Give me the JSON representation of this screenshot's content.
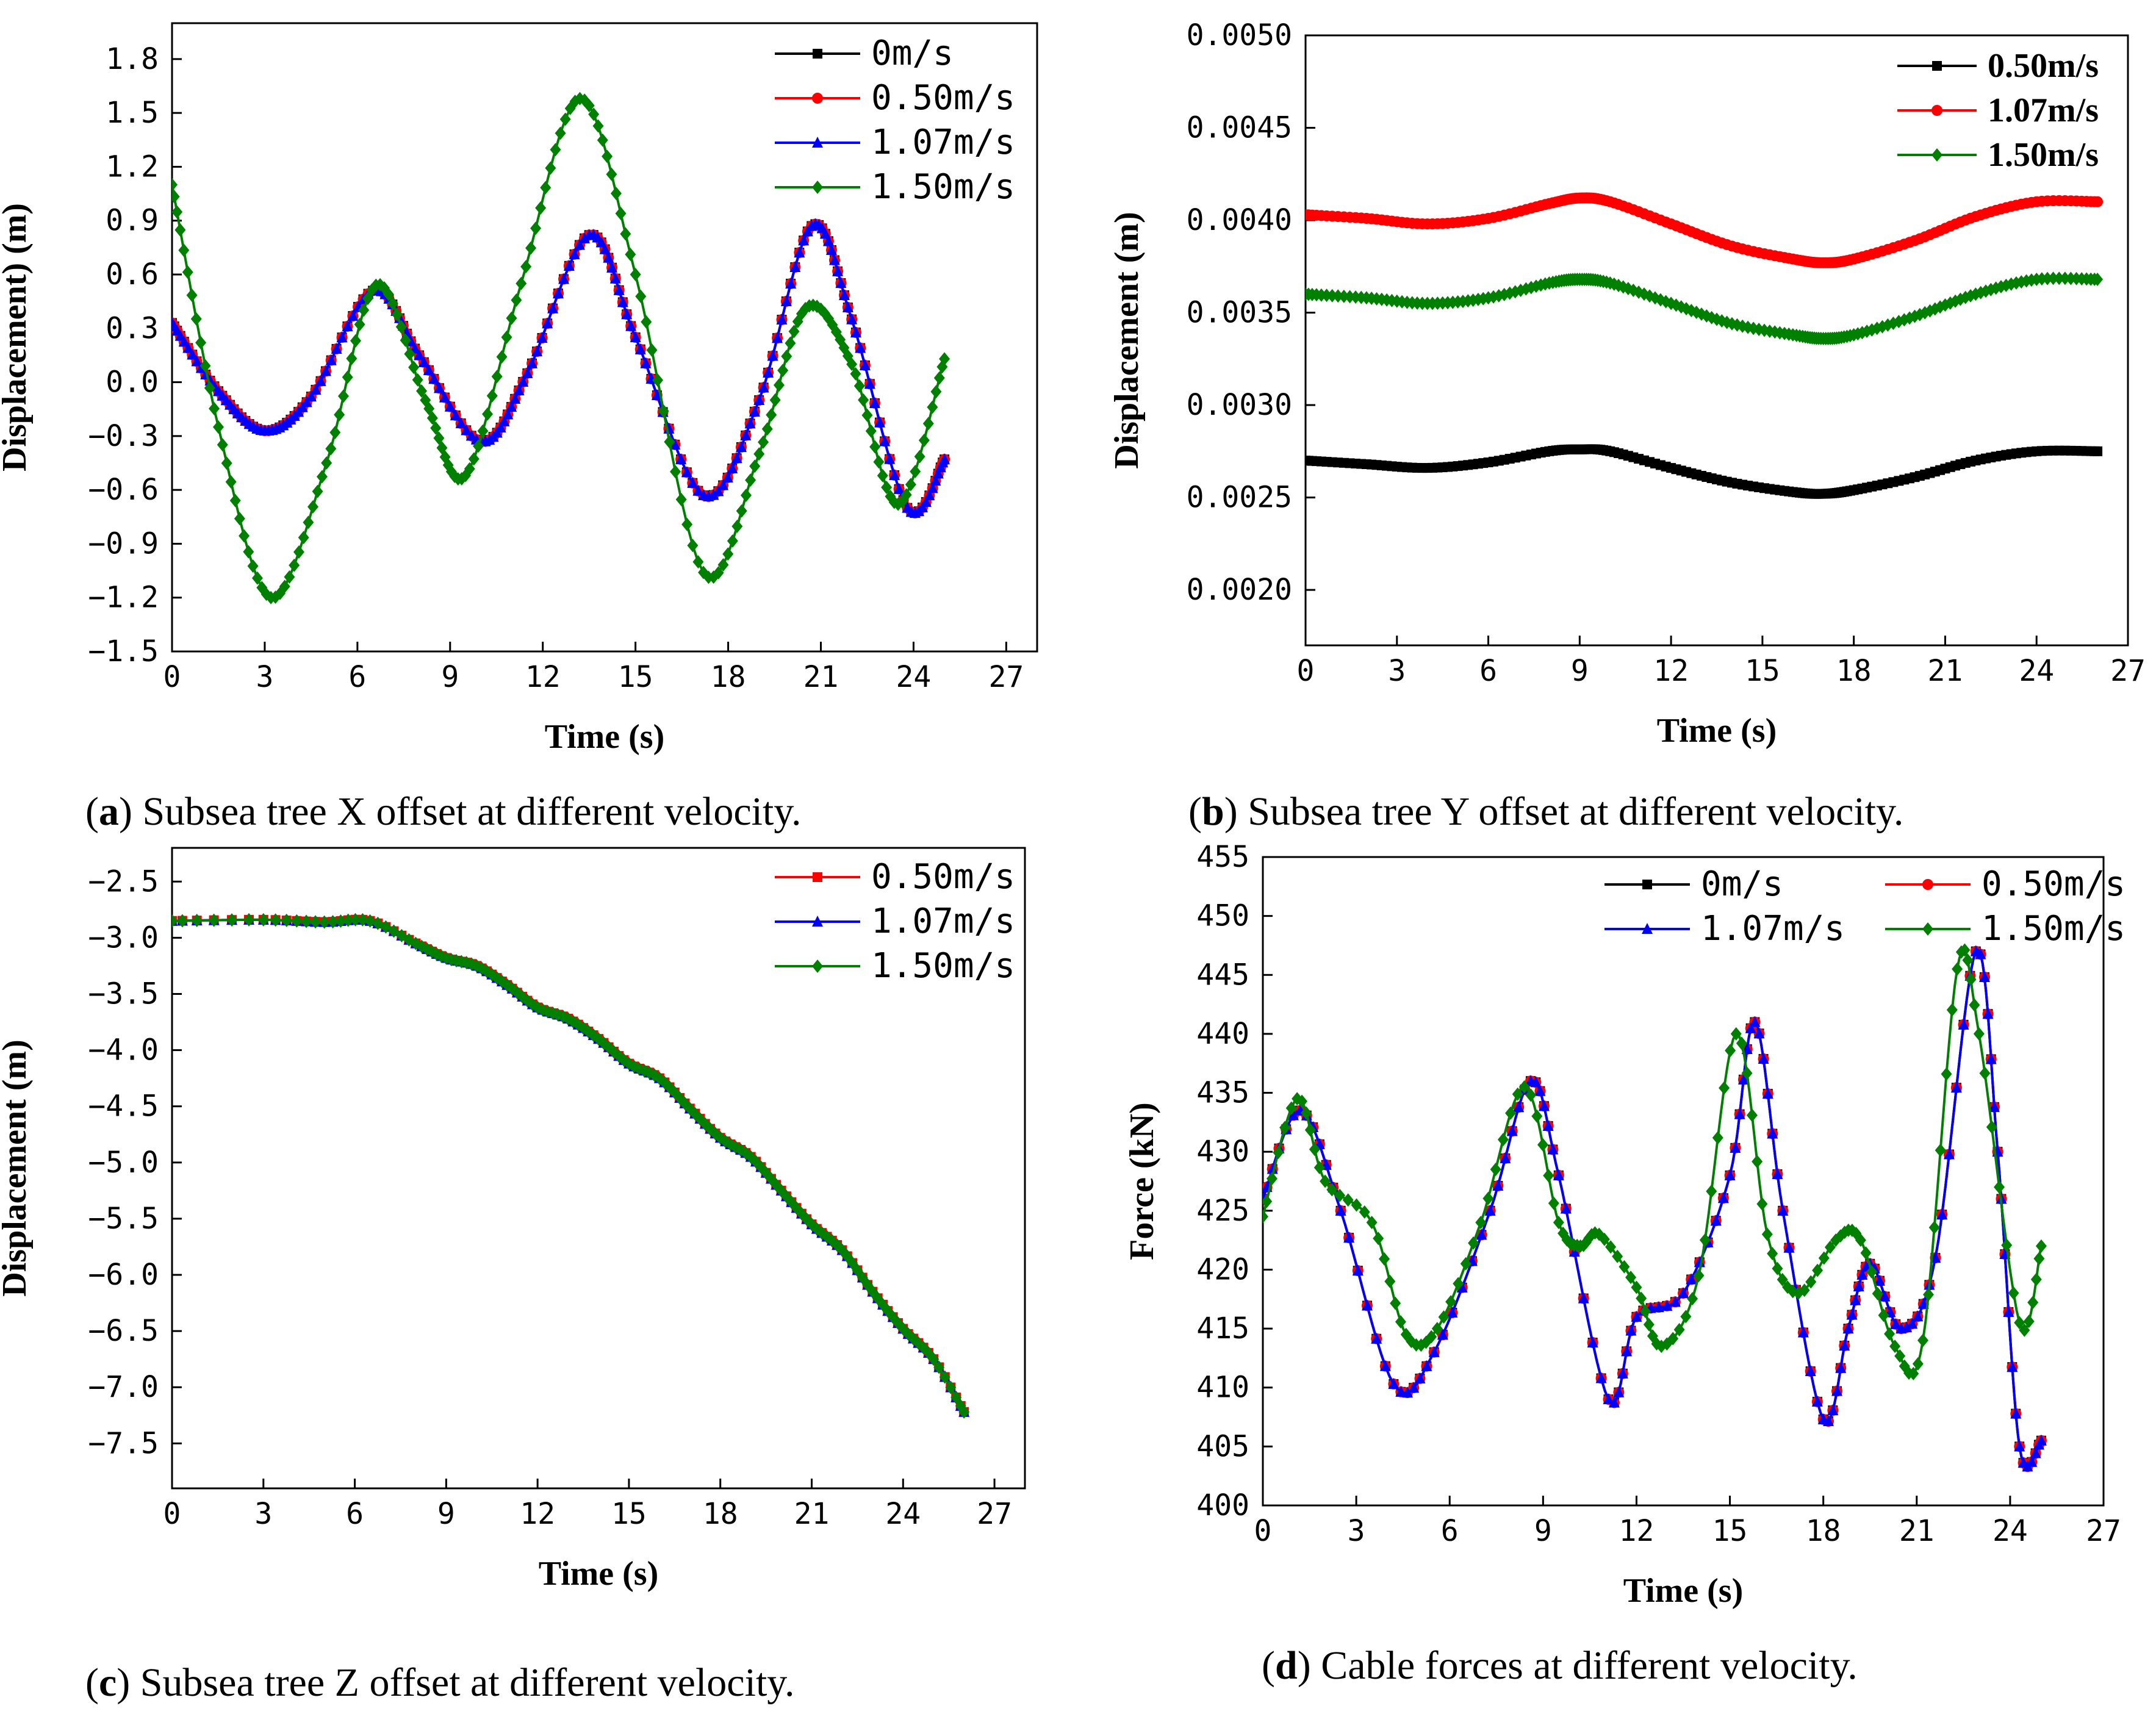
{
  "colors": {
    "s0": "#000000",
    "s050": "#ff0000",
    "s107": "#0000ff",
    "s150": "#008000"
  },
  "captions": {
    "a": {
      "letter": "a",
      "text": " Subsea tree X offset at different velocity."
    },
    "b": {
      "letter": "b",
      "text": " Subsea tree Y offset at different velocity."
    },
    "c": {
      "letter": "c",
      "text": " Subsea tree Z offset at different velocity."
    },
    "d": {
      "letter": "d",
      "text": " Cable forces at different velocity."
    }
  },
  "chart_data": [
    {
      "id": "a",
      "type": "line",
      "xlabel": "Time (s)",
      "ylabel": "Displacement) (m)",
      "xlim": [
        0,
        28
      ],
      "ylim": [
        -1.5,
        2.0
      ],
      "xticks": [
        "0",
        "3",
        "6",
        "9",
        "12",
        "15",
        "18",
        "21",
        "24",
        "27"
      ],
      "xtick_values": [
        0,
        3,
        6,
        9,
        12,
        15,
        18,
        21,
        24,
        27
      ],
      "yticks": [
        "-1.5",
        "-1.2",
        "-0.9",
        "-0.6",
        "-0.3",
        "0.0",
        "0.3",
        "0.6",
        "0.9",
        "1.2",
        "1.5",
        "1.8"
      ],
      "ytick_values": [
        -1.5,
        -1.2,
        -0.9,
        -0.6,
        -0.3,
        0.0,
        0.3,
        0.6,
        0.9,
        1.2,
        1.5,
        1.8
      ],
      "legend": "top-right",
      "series": [
        {
          "name": "0m/s",
          "label": "0m/s",
          "color": "#000000",
          "marker": "square",
          "x": [
            0,
            1.5,
            3,
            4.5,
            6.5,
            8,
            10,
            11.5,
            13.5,
            15,
            17.2,
            19,
            20.7,
            22,
            23.8,
            25
          ],
          "y": [
            0.33,
            -0.05,
            -0.27,
            -0.08,
            0.51,
            0.15,
            -0.33,
            0.05,
            0.82,
            0.25,
            -0.63,
            -0.1,
            0.87,
            0.35,
            -0.7,
            -0.43
          ]
        },
        {
          "name": "0.50m/s",
          "label": "0.50m/s",
          "color": "#ff0000",
          "marker": "circle",
          "x": [
            0,
            1.5,
            3,
            4.5,
            6.5,
            8,
            10,
            11.5,
            13.5,
            15,
            17.2,
            19,
            20.7,
            22,
            23.8,
            25
          ],
          "y": [
            0.33,
            -0.05,
            -0.27,
            -0.08,
            0.51,
            0.15,
            -0.33,
            0.05,
            0.82,
            0.25,
            -0.63,
            -0.1,
            0.87,
            0.35,
            -0.7,
            -0.43
          ]
        },
        {
          "name": "1.07m/s",
          "label": "1.07m/s",
          "color": "#0000ff",
          "marker": "triangle",
          "x": [
            0,
            1.5,
            3,
            4.5,
            6.5,
            8,
            10,
            11.5,
            13.5,
            15,
            17.2,
            19,
            20.7,
            22,
            23.8,
            25
          ],
          "y": [
            0.33,
            -0.05,
            -0.27,
            -0.08,
            0.51,
            0.15,
            -0.33,
            0.05,
            0.82,
            0.25,
            -0.63,
            -0.1,
            0.87,
            0.35,
            -0.7,
            -0.43
          ]
        },
        {
          "name": "1.50m/s",
          "label": "1.50m/s",
          "color": "#008000",
          "marker": "diamond",
          "x": [
            0,
            1.5,
            3.2,
            5,
            6.6,
            8.2,
            9.5,
            11.3,
            13.2,
            15,
            17.2,
            19,
            20.5,
            22,
            23.5,
            25
          ],
          "y": [
            1.1,
            -0.25,
            -1.2,
            -0.45,
            0.54,
            -0.1,
            -0.52,
            0.55,
            1.58,
            0.6,
            -1.06,
            -0.4,
            0.41,
            0.1,
            -0.68,
            0.13
          ]
        }
      ]
    },
    {
      "id": "b",
      "type": "line",
      "xlabel": "Time (s)",
      "ylabel": "Displacement (m)",
      "xlim": [
        0,
        27
      ],
      "ylim": [
        0.0017,
        0.005
      ],
      "xticks": [
        "0",
        "3",
        "6",
        "9",
        "12",
        "15",
        "18",
        "21",
        "24",
        "27"
      ],
      "xtick_values": [
        0,
        3,
        6,
        9,
        12,
        15,
        18,
        21,
        24,
        27
      ],
      "yticks": [
        "0.0020",
        "0.0025",
        "0.0030",
        "0.0035",
        "0.0040",
        "0.0045",
        "0.0050"
      ],
      "ytick_values": [
        0.002,
        0.0025,
        0.003,
        0.0035,
        0.004,
        0.0045,
        0.005
      ],
      "legend": "top-right",
      "series": [
        {
          "name": "0.50m/s",
          "label": "0.50m/s",
          "color": "#000000",
          "marker": "square",
          "x": [
            0,
            2,
            4,
            6,
            8,
            9,
            10,
            12,
            14,
            16,
            17,
            18,
            20,
            22,
            24,
            26
          ],
          "y": [
            0.0027,
            0.00268,
            0.00266,
            0.00269,
            0.00275,
            0.00276,
            0.00275,
            0.00266,
            0.00258,
            0.00253,
            0.00252,
            0.00254,
            0.00261,
            0.0027,
            0.00275,
            0.00275
          ]
        },
        {
          "name": "1.07m/s",
          "label": "1.07m/s",
          "color": "#ff0000",
          "marker": "circle",
          "x": [
            0,
            2,
            4,
            6,
            8,
            9,
            10,
            12,
            14,
            16,
            17,
            18,
            20,
            22,
            24,
            26
          ],
          "y": [
            0.00403,
            0.00401,
            0.00398,
            0.00401,
            0.00409,
            0.00412,
            0.0041,
            0.00398,
            0.00386,
            0.00379,
            0.00377,
            0.00379,
            0.00389,
            0.00402,
            0.0041,
            0.0041
          ]
        },
        {
          "name": "1.50m/s",
          "label": "1.50m/s",
          "color": "#008000",
          "marker": "diamond",
          "x": [
            0,
            2,
            4,
            6,
            8,
            9,
            10,
            12,
            14,
            16,
            17,
            18,
            20,
            22,
            24,
            26
          ],
          "y": [
            0.0036,
            0.00358,
            0.00355,
            0.00358,
            0.00366,
            0.00368,
            0.00366,
            0.00355,
            0.00344,
            0.00338,
            0.00336,
            0.00338,
            0.00348,
            0.0036,
            0.00368,
            0.00368
          ]
        }
      ]
    },
    {
      "id": "c",
      "type": "line",
      "xlabel": "Time (s)",
      "ylabel": "Displacement (m)",
      "xlim": [
        0,
        28
      ],
      "ylim": [
        -7.9,
        -2.2
      ],
      "xticks": [
        "0",
        "3",
        "6",
        "9",
        "12",
        "15",
        "18",
        "21",
        "24",
        "27"
      ],
      "xtick_values": [
        0,
        3,
        6,
        9,
        12,
        15,
        18,
        21,
        24,
        27
      ],
      "yticks": [
        "-7.5",
        "-7.0",
        "-6.5",
        "-6.0",
        "-5.5",
        "-5.0",
        "-4.5",
        "-4.0",
        "-3.5",
        "-3.0",
        "-2.5"
      ],
      "ytick_values": [
        -7.5,
        -7.0,
        -6.5,
        -6.0,
        -5.5,
        -5.0,
        -4.5,
        -4.0,
        -3.5,
        -3.0,
        -2.5
      ],
      "legend": "top-right",
      "series": [
        {
          "name": "0.50m/s",
          "label": "0.50m/s",
          "color": "#ff0000",
          "marker": "square",
          "x": [
            0,
            3,
            5,
            6.5,
            8,
            9,
            10,
            11,
            12,
            13,
            14,
            15,
            16,
            17,
            18,
            19,
            20,
            21,
            22,
            23,
            24,
            25,
            26
          ],
          "y": [
            -2.85,
            -2.84,
            -2.86,
            -2.85,
            -3.05,
            -3.18,
            -3.25,
            -3.42,
            -3.62,
            -3.72,
            -3.9,
            -4.12,
            -4.25,
            -4.52,
            -4.78,
            -4.95,
            -5.25,
            -5.55,
            -5.78,
            -6.15,
            -6.48,
            -6.75,
            -7.22
          ]
        },
        {
          "name": "1.07m/s",
          "label": "1.07m/s",
          "color": "#0000ff",
          "marker": "triangle",
          "x": [
            0,
            3,
            5,
            6.5,
            8,
            9,
            10,
            11,
            12,
            13,
            14,
            15,
            16,
            17,
            18,
            19,
            20,
            21,
            22,
            23,
            24,
            25,
            26
          ],
          "y": [
            -2.85,
            -2.84,
            -2.86,
            -2.85,
            -3.05,
            -3.18,
            -3.25,
            -3.42,
            -3.62,
            -3.72,
            -3.9,
            -4.12,
            -4.25,
            -4.52,
            -4.78,
            -4.95,
            -5.25,
            -5.55,
            -5.78,
            -6.15,
            -6.48,
            -6.75,
            -7.22
          ]
        },
        {
          "name": "1.50m/s",
          "label": "1.50m/s",
          "color": "#008000",
          "marker": "diamond",
          "x": [
            0,
            3,
            5,
            6.5,
            8,
            9,
            10,
            11,
            12,
            13,
            14,
            15,
            16,
            17,
            18,
            19,
            20,
            21,
            22,
            23,
            24,
            25,
            26
          ],
          "y": [
            -2.85,
            -2.84,
            -2.86,
            -2.85,
            -3.05,
            -3.18,
            -3.25,
            -3.42,
            -3.62,
            -3.72,
            -3.9,
            -4.12,
            -4.25,
            -4.52,
            -4.78,
            -4.95,
            -5.25,
            -5.55,
            -5.78,
            -6.15,
            -6.48,
            -6.75,
            -7.22
          ]
        }
      ]
    },
    {
      "id": "d",
      "type": "line",
      "xlabel": "Time (s)",
      "ylabel": "Force (kN)",
      "xlim": [
        0,
        27
      ],
      "ylim": [
        400,
        455
      ],
      "xticks": [
        "0",
        "3",
        "6",
        "9",
        "12",
        "15",
        "18",
        "21",
        "24",
        "27"
      ],
      "xtick_values": [
        0,
        3,
        6,
        9,
        12,
        15,
        18,
        21,
        24,
        27
      ],
      "yticks": [
        "400",
        "405",
        "410",
        "415",
        "420",
        "425",
        "430",
        "435",
        "440",
        "445",
        "450",
        "455"
      ],
      "ytick_values": [
        400,
        405,
        410,
        415,
        420,
        425,
        430,
        435,
        440,
        445,
        450,
        455
      ],
      "legend": "top-right",
      "series": [
        {
          "name": "0m/s",
          "label": "0m/s",
          "color": "#000000",
          "marker": "square",
          "x": [
            0,
            1.2,
            2.5,
            4.2,
            5.5,
            7.3,
            8.6,
            9.5,
            11.1,
            12,
            13.5,
            15,
            15.8,
            16.7,
            18,
            18.8,
            19.5,
            20.5,
            21.6,
            22.9,
            23.6,
            24.3,
            25
          ],
          "y": [
            426,
            433.5,
            425,
            410.3,
            413,
            425,
            436,
            428,
            409,
            416,
            418,
            428,
            441,
            425,
            407.3,
            415,
            420.5,
            415,
            421,
            447,
            430,
            405,
            405.5
          ]
        },
        {
          "name": "0.50m/s",
          "label": "0.50m/s",
          "color": "#ff0000",
          "marker": "circle",
          "x": [
            0,
            1.2,
            2.5,
            4.2,
            5.5,
            7.3,
            8.6,
            9.5,
            11.1,
            12,
            13.5,
            15,
            15.8,
            16.7,
            18,
            18.8,
            19.5,
            20.5,
            21.6,
            22.9,
            23.6,
            24.3,
            25
          ],
          "y": [
            426,
            433.5,
            425,
            410.3,
            413,
            425,
            436,
            428,
            409,
            416,
            418,
            428,
            441,
            425,
            407.3,
            415,
            420.5,
            415,
            421,
            447,
            430,
            405,
            405.5
          ]
        },
        {
          "name": "1.07m/s",
          "label": "1.07m/s",
          "color": "#0000ff",
          "marker": "triangle",
          "x": [
            0,
            1.2,
            2.5,
            4.2,
            5.5,
            7.3,
            8.6,
            9.5,
            11.1,
            12,
            13.5,
            15,
            15.8,
            16.7,
            18,
            18.8,
            19.5,
            20.5,
            21.6,
            22.9,
            23.6,
            24.3,
            25
          ],
          "y": [
            426,
            433.5,
            425,
            410.3,
            413,
            425,
            436,
            428,
            409,
            416,
            418,
            428,
            441,
            425,
            407.3,
            415,
            420.5,
            415,
            421,
            447,
            430,
            405,
            405.5
          ]
        },
        {
          "name": "1.50m/s",
          "label": "1.50m/s",
          "color": "#008000",
          "marker": "diamond",
          "x": [
            0,
            1.1,
            2,
            3.5,
            4.6,
            5.6,
            7,
            8.4,
            9.5,
            10.2,
            10.8,
            12,
            12.8,
            14,
            15.2,
            16.2,
            17.2,
            18.4,
            19.2,
            20.3,
            21.2,
            22.3,
            23,
            24.3,
            25
          ],
          "y": [
            424.5,
            434.5,
            427.5,
            424,
            414.5,
            415,
            424,
            435.5,
            424,
            422,
            423,
            418.5,
            413.5,
            419.5,
            440,
            423,
            418,
            422.5,
            422.5,
            413.5,
            414,
            445.5,
            440,
            415.5,
            422
          ]
        }
      ]
    }
  ]
}
